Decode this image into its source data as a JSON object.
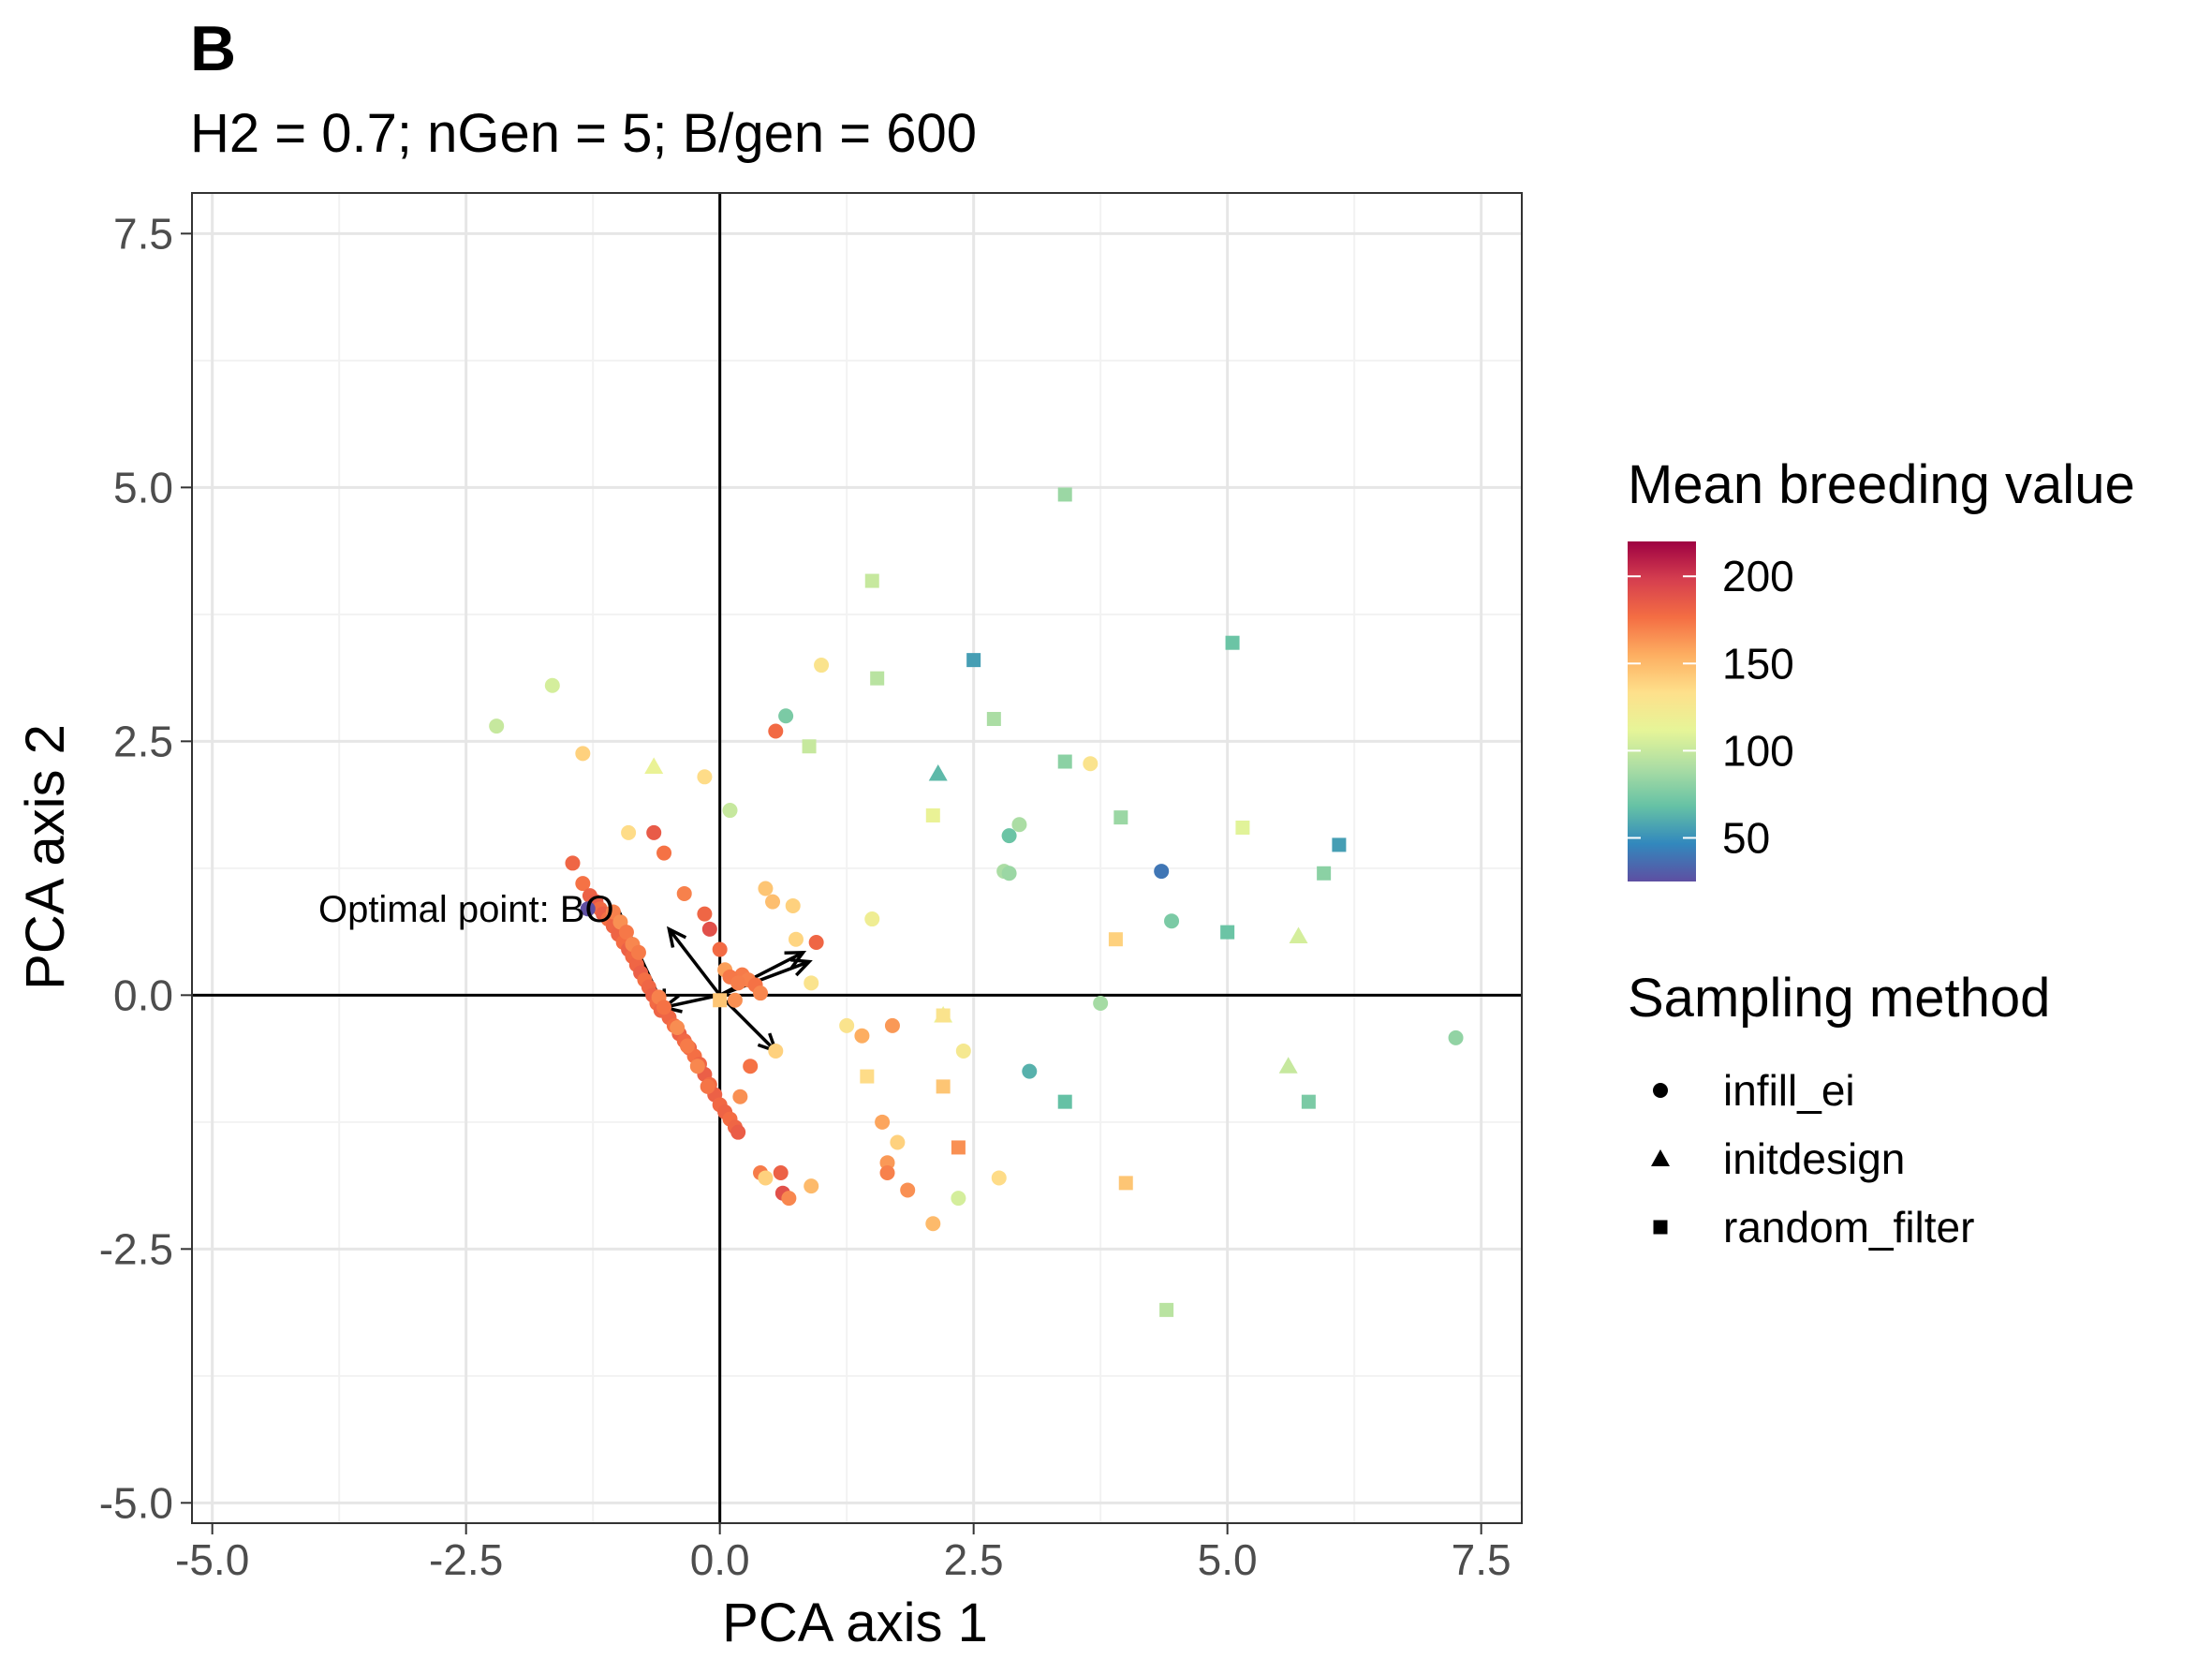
{
  "panel_letter": "B",
  "chart_data": {
    "type": "scatter",
    "title": "H2 = 0.7; nGen = 5; B/gen = 600",
    "xlabel": "PCA axis 1",
    "ylabel": "PCA axis 2",
    "xlim": [
      -5.2,
      7.9
    ],
    "ylim": [
      -5.2,
      7.9
    ],
    "x_ticks": [
      -5.0,
      -2.5,
      0.0,
      2.5,
      5.0,
      7.5
    ],
    "x_tick_labels": [
      "-5.0",
      "-2.5",
      "0.0",
      "2.5",
      "5.0",
      "7.5"
    ],
    "y_ticks": [
      -5.0,
      -2.5,
      0.0,
      2.5,
      5.0,
      7.5
    ],
    "y_tick_labels": [
      "-5.0",
      "-2.5",
      "0.0",
      "2.5",
      "5.0",
      "7.5"
    ],
    "grid": true,
    "reference_lines": {
      "x": 0,
      "y": 0
    },
    "annotation": {
      "text": "Optimal point: BO",
      "x_text": -1.55,
      "y_text": 0.85,
      "x": -0.55,
      "y": -0.12
    },
    "arrows": [
      {
        "x0": 0.0,
        "y0": 0.0,
        "x1": -0.55,
        "y1": -0.12
      },
      {
        "x0": 0.0,
        "y0": 0.0,
        "x1": -0.5,
        "y1": 0.65
      },
      {
        "x0": 0.0,
        "y0": 0.0,
        "x1": 0.82,
        "y1": 0.42
      },
      {
        "x0": 0.0,
        "y0": 0.0,
        "x1": 0.88,
        "y1": 0.33
      },
      {
        "x0": 0.0,
        "y0": 0.0,
        "x1": 0.55,
        "y1": -0.55
      }
    ],
    "color_legend": {
      "title": "Mean breeding value",
      "range": [
        25,
        220
      ],
      "ticks": [
        200,
        150,
        100,
        50
      ],
      "tick_labels": [
        "200",
        "150",
        "100",
        "50"
      ],
      "palette": [
        "#5E4FA2",
        "#3288BD",
        "#66C2A5",
        "#ABDDA4",
        "#E6F598",
        "#FEE08B",
        "#FDAE61",
        "#F46D43",
        "#D53E4F",
        "#9E0142"
      ]
    },
    "shape_legend": {
      "title": "Sampling method",
      "entries": [
        {
          "label": "infill_ei",
          "shape": "circle"
        },
        {
          "label": "initdesign",
          "shape": "triangle"
        },
        {
          "label": "random_filter",
          "shape": "square"
        }
      ]
    },
    "series": [
      {
        "name": "infill_ei",
        "shape": "circle",
        "points": [
          [
            -1.45,
            1.3,
            180
          ],
          [
            -1.35,
            1.1,
            175
          ],
          [
            -1.28,
            0.98,
            182
          ],
          [
            -1.22,
            0.92,
            185
          ],
          [
            -1.18,
            0.85,
            178
          ],
          [
            -1.15,
            0.8,
            183
          ],
          [
            -1.1,
            0.75,
            176
          ],
          [
            -1.05,
            0.68,
            180
          ],
          [
            -1.0,
            0.6,
            181
          ],
          [
            -0.95,
            0.52,
            177
          ],
          [
            -0.9,
            0.45,
            182
          ],
          [
            -0.86,
            0.38,
            179
          ],
          [
            -0.82,
            0.3,
            180
          ],
          [
            -0.78,
            0.22,
            183
          ],
          [
            -0.74,
            0.15,
            176
          ],
          [
            -0.7,
            0.08,
            180
          ],
          [
            -0.66,
            0.0,
            182
          ],
          [
            -0.62,
            -0.08,
            178
          ],
          [
            -0.58,
            -0.15,
            181
          ],
          [
            -0.5,
            -0.22,
            180
          ],
          [
            -0.45,
            -0.3,
            177
          ],
          [
            -0.4,
            -0.38,
            182
          ],
          [
            -0.35,
            -0.45,
            179
          ],
          [
            -0.3,
            -0.52,
            181
          ],
          [
            -0.25,
            -0.6,
            176
          ],
          [
            -0.2,
            -0.68,
            180
          ],
          [
            -0.15,
            -0.78,
            183
          ],
          [
            -0.1,
            -0.88,
            178
          ],
          [
            -0.05,
            -0.98,
            182
          ],
          [
            0.0,
            -1.08,
            179
          ],
          [
            0.05,
            -1.15,
            181
          ],
          [
            0.1,
            -1.22,
            177
          ],
          [
            0.15,
            -1.3,
            180
          ],
          [
            0.18,
            -1.35,
            184
          ],
          [
            -1.05,
            0.82,
            170
          ],
          [
            -0.98,
            0.72,
            165
          ],
          [
            -0.92,
            0.62,
            173
          ],
          [
            -0.86,
            0.5,
            168
          ],
          [
            -0.8,
            0.42,
            172
          ],
          [
            -0.6,
            -0.02,
            170
          ],
          [
            -0.55,
            -0.12,
            175
          ],
          [
            -0.42,
            -0.32,
            166
          ],
          [
            -0.32,
            -0.5,
            172
          ],
          [
            -0.22,
            -0.7,
            168
          ],
          [
            -0.12,
            -0.9,
            174
          ],
          [
            -1.3,
            0.85,
            25
          ],
          [
            -2.2,
            2.65,
            100
          ],
          [
            -1.65,
            3.05,
            105
          ],
          [
            -1.35,
            2.38,
            140
          ],
          [
            -0.9,
            1.6,
            135
          ],
          [
            -0.65,
            1.6,
            185
          ],
          [
            -0.55,
            1.4,
            175
          ],
          [
            -0.35,
            1.0,
            170
          ],
          [
            -0.15,
            0.8,
            180
          ],
          [
            -0.1,
            0.65,
            190
          ],
          [
            0.0,
            0.45,
            178
          ],
          [
            0.05,
            0.25,
            160
          ],
          [
            0.15,
            -0.05,
            165
          ],
          [
            0.22,
            0.2,
            172
          ],
          [
            0.28,
            0.15,
            170
          ],
          [
            0.35,
            0.1,
            175
          ],
          [
            0.4,
            0.02,
            168
          ],
          [
            0.1,
            0.18,
            173
          ],
          [
            0.18,
            0.12,
            171
          ],
          [
            0.45,
            1.05,
            145
          ],
          [
            0.52,
            0.92,
            148
          ],
          [
            0.72,
            0.88,
            140
          ],
          [
            0.75,
            0.55,
            138
          ],
          [
            0.9,
            0.12,
            130
          ],
          [
            0.95,
            0.52,
            180
          ],
          [
            1.0,
            3.25,
            130
          ],
          [
            0.55,
            2.6,
            178
          ],
          [
            0.65,
            2.75,
            75
          ],
          [
            0.1,
            1.82,
            100
          ],
          [
            -0.15,
            2.15,
            135
          ],
          [
            0.3,
            -0.7,
            175
          ],
          [
            0.2,
            -1.0,
            165
          ],
          [
            0.4,
            -1.75,
            172
          ],
          [
            0.45,
            -1.8,
            140
          ],
          [
            0.6,
            -1.75,
            182
          ],
          [
            0.62,
            -1.95,
            190
          ],
          [
            0.68,
            -2.0,
            168
          ],
          [
            0.9,
            -1.88,
            150
          ],
          [
            0.55,
            -0.55,
            140
          ],
          [
            1.25,
            -0.3,
            130
          ],
          [
            1.4,
            -0.4,
            155
          ],
          [
            1.5,
            0.75,
            120
          ],
          [
            1.7,
            -0.3,
            162
          ],
          [
            1.6,
            -1.25,
            158
          ],
          [
            1.65,
            -1.65,
            162
          ],
          [
            1.65,
            -1.75,
            170
          ],
          [
            1.75,
            -1.45,
            140
          ],
          [
            1.85,
            -1.92,
            165
          ],
          [
            2.1,
            -2.25,
            150
          ],
          [
            2.4,
            -0.55,
            125
          ],
          [
            2.35,
            -2.0,
            105
          ],
          [
            2.75,
            -1.8,
            135
          ],
          [
            2.8,
            1.22,
            90
          ],
          [
            2.85,
            1.2,
            85
          ],
          [
            2.85,
            1.57,
            70
          ],
          [
            2.95,
            1.68,
            90
          ],
          [
            3.05,
            -0.75,
            62
          ],
          [
            3.65,
            2.28,
            130
          ],
          [
            3.75,
            -0.08,
            88
          ],
          [
            4.35,
            1.22,
            40
          ],
          [
            4.45,
            0.73,
            75
          ],
          [
            7.25,
            -0.42,
            82
          ]
        ]
      },
      {
        "name": "initdesign",
        "shape": "triangle",
        "points": [
          [
            -0.65,
            2.25,
            115
          ],
          [
            2.15,
            2.18,
            65
          ],
          [
            2.2,
            -0.2,
            115
          ],
          [
            5.6,
            -0.7,
            100
          ],
          [
            5.7,
            0.58,
            105
          ]
        ]
      },
      {
        "name": "random_filter",
        "shape": "square",
        "points": [
          [
            0.0,
            -0.05,
            145
          ],
          [
            0.88,
            2.45,
            100
          ],
          [
            1.45,
            -0.8,
            135
          ],
          [
            1.5,
            4.08,
            100
          ],
          [
            1.55,
            3.12,
            95
          ],
          [
            2.1,
            1.77,
            115
          ],
          [
            2.2,
            -0.2,
            130
          ],
          [
            2.2,
            -0.9,
            145
          ],
          [
            2.35,
            -1.5,
            165
          ],
          [
            2.5,
            3.3,
            55
          ],
          [
            2.7,
            2.72,
            90
          ],
          [
            3.4,
            4.93,
            85
          ],
          [
            3.4,
            2.3,
            80
          ],
          [
            3.4,
            -1.05,
            68
          ],
          [
            3.9,
            0.55,
            140
          ],
          [
            3.95,
            1.75,
            85
          ],
          [
            4.0,
            -1.85,
            145
          ],
          [
            4.4,
            -3.1,
            95
          ],
          [
            5.0,
            0.62,
            70
          ],
          [
            5.05,
            3.47,
            70
          ],
          [
            5.15,
            1.65,
            110
          ],
          [
            5.8,
            -1.05,
            75
          ],
          [
            5.95,
            1.2,
            80
          ],
          [
            6.1,
            1.48,
            55
          ]
        ]
      }
    ]
  }
}
